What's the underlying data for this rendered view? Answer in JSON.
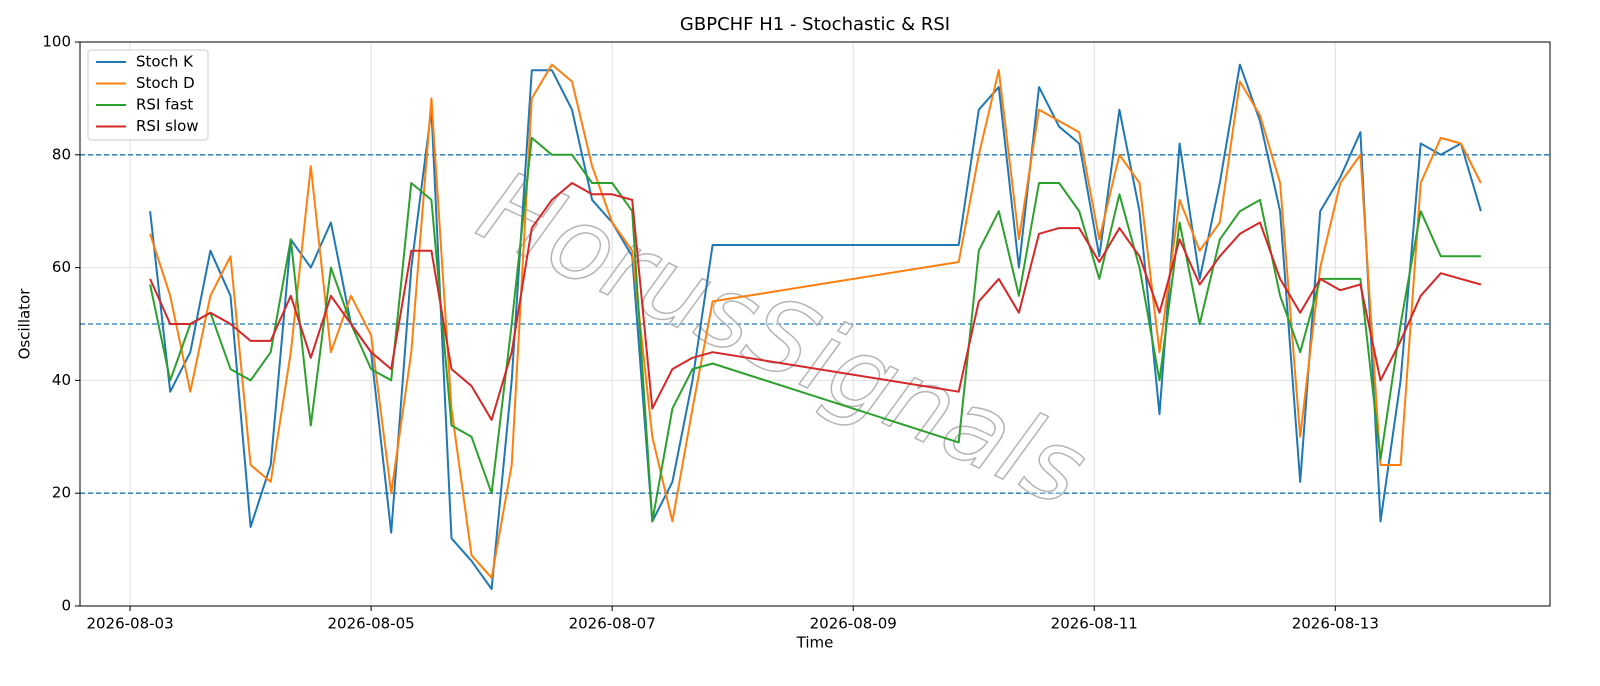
{
  "chart_data": {
    "type": "line",
    "title": "GBPCHF H1 - Stochastic & RSI",
    "x_label": "Time",
    "y_label": "Oscillator",
    "watermark": "HorusSignals",
    "x": [
      "2026-08-03T04:00",
      "2026-08-03T08:00",
      "2026-08-03T12:00",
      "2026-08-03T16:00",
      "2026-08-03T20:00",
      "2026-08-04T00:00",
      "2026-08-04T04:00",
      "2026-08-04T08:00",
      "2026-08-04T12:00",
      "2026-08-04T16:00",
      "2026-08-04T20:00",
      "2026-08-05T00:00",
      "2026-08-05T04:00",
      "2026-08-05T08:00",
      "2026-08-05T12:00",
      "2026-08-05T16:00",
      "2026-08-05T20:00",
      "2026-08-06T00:00",
      "2026-08-06T04:00",
      "2026-08-06T08:00",
      "2026-08-06T12:00",
      "2026-08-06T16:00",
      "2026-08-06T20:00",
      "2026-08-07T00:00",
      "2026-08-07T04:00",
      "2026-08-07T08:00",
      "2026-08-07T12:00",
      "2026-08-07T16:00",
      "2026-08-07T20:00",
      "2026-08-09T21:00",
      "2026-08-10T01:00",
      "2026-08-10T05:00",
      "2026-08-10T09:00",
      "2026-08-10T13:00",
      "2026-08-10T17:00",
      "2026-08-10T21:00",
      "2026-08-11T01:00",
      "2026-08-11T05:00",
      "2026-08-11T09:00",
      "2026-08-11T13:00",
      "2026-08-11T17:00",
      "2026-08-11T21:00",
      "2026-08-12T01:00",
      "2026-08-12T05:00",
      "2026-08-12T09:00",
      "2026-08-12T13:00",
      "2026-08-12T17:00",
      "2026-08-12T21:00",
      "2026-08-13T01:00",
      "2026-08-13T05:00",
      "2026-08-13T09:00",
      "2026-08-13T13:00",
      "2026-08-13T17:00",
      "2026-08-13T21:00",
      "2026-08-14T01:00",
      "2026-08-14T05:00"
    ],
    "series": [
      {
        "name": "Stoch K",
        "color": "#1f77b4",
        "values": [
          70,
          38,
          45,
          63,
          55,
          14,
          25,
          65,
          60,
          68,
          50,
          45,
          13,
          60,
          88,
          12,
          8,
          3,
          40,
          95,
          95,
          88,
          72,
          68,
          62,
          15,
          22,
          40,
          64,
          64,
          88,
          92,
          60,
          92,
          85,
          82,
          62,
          88,
          70,
          34,
          82,
          58,
          75,
          96,
          86,
          70,
          22,
          70,
          76,
          84,
          15,
          40,
          82,
          80,
          82,
          70
        ]
      },
      {
        "name": "Stoch D",
        "color": "#ff7f0e",
        "values": [
          66,
          55,
          38,
          55,
          62,
          25,
          22,
          45,
          78,
          45,
          55,
          48,
          20,
          45,
          90,
          35,
          9,
          5,
          25,
          90,
          96,
          93,
          78,
          68,
          63,
          30,
          15,
          35,
          54,
          61,
          80,
          95,
          65,
          88,
          86,
          84,
          65,
          80,
          75,
          45,
          72,
          63,
          68,
          93,
          87,
          75,
          30,
          60,
          75,
          80,
          25,
          25,
          75,
          83,
          82,
          75
        ]
      },
      {
        "name": "RSI fast",
        "color": "#2ca02c",
        "values": [
          57,
          40,
          50,
          52,
          42,
          40,
          45,
          65,
          32,
          60,
          50,
          42,
          40,
          75,
          72,
          32,
          30,
          20,
          50,
          83,
          80,
          80,
          75,
          75,
          70,
          15,
          35,
          42,
          43,
          29,
          63,
          70,
          55,
          75,
          75,
          70,
          58,
          73,
          60,
          40,
          68,
          50,
          65,
          70,
          72,
          55,
          45,
          58,
          58,
          58,
          26,
          50,
          70,
          62,
          62,
          62
        ]
      },
      {
        "name": "RSI slow",
        "color": "#d62728",
        "values": [
          58,
          50,
          50,
          52,
          50,
          47,
          47,
          55,
          44,
          55,
          50,
          45,
          42,
          63,
          63,
          42,
          39,
          33,
          45,
          67,
          72,
          75,
          73,
          73,
          72,
          35,
          42,
          44,
          45,
          38,
          54,
          58,
          52,
          66,
          67,
          67,
          61,
          67,
          62,
          52,
          65,
          57,
          62,
          66,
          68,
          58,
          52,
          58,
          56,
          57,
          40,
          47,
          55,
          59,
          58,
          57
        ]
      }
    ],
    "xlim": [
      "2026-08-02T14:02",
      "2026-08-14T18:45"
    ],
    "xticks": [
      "2026-08-03",
      "2026-08-05",
      "2026-08-07",
      "2026-08-09",
      "2026-08-11",
      "2026-08-13"
    ],
    "ylim": [
      0,
      100
    ],
    "yticks": [
      0,
      20,
      40,
      60,
      80,
      100
    ],
    "hlines": [
      20,
      50,
      80
    ],
    "hline_color": "#1f77b4",
    "grid": true,
    "legend": "upper left"
  }
}
